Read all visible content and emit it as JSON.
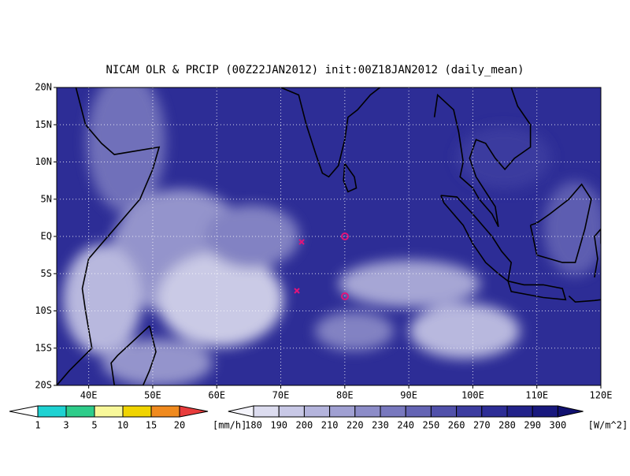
{
  "title": "NICAM OLR & PRCIP (00Z22JAN2012) init:00Z18JAN2012 (daily_mean)",
  "lat_labels": [
    "20N",
    "15N",
    "10N",
    "5N",
    "EQ",
    "5S",
    "10S",
    "15S",
    "20S"
  ],
  "lon_labels": [
    "40E",
    "50E",
    "60E",
    "70E",
    "80E",
    "90E",
    "100E",
    "110E",
    "120E"
  ],
  "precip_colorbar": {
    "levels": [
      1,
      3,
      5,
      10,
      15,
      20
    ],
    "unit": "[mm/h]",
    "colors": [
      "#ffffff",
      "#1ed2d2",
      "#2ecc8a",
      "#f8f89a",
      "#f0d400",
      "#f08a1e",
      "#e83c3c"
    ]
  },
  "olr_colorbar": {
    "levels": [
      180,
      190,
      200,
      210,
      220,
      230,
      240,
      250,
      260,
      270,
      280,
      290,
      300
    ],
    "unit": "[W/m^2]",
    "colors": [
      "#f4f4fb",
      "#dcdcef",
      "#c8c8e6",
      "#b4b4dc",
      "#a0a0d2",
      "#8c8cc8",
      "#7878be",
      "#6464b4",
      "#5050aa",
      "#3c3ca0",
      "#2d2d96",
      "#22228a",
      "#18187e",
      "#101070"
    ]
  }
}
